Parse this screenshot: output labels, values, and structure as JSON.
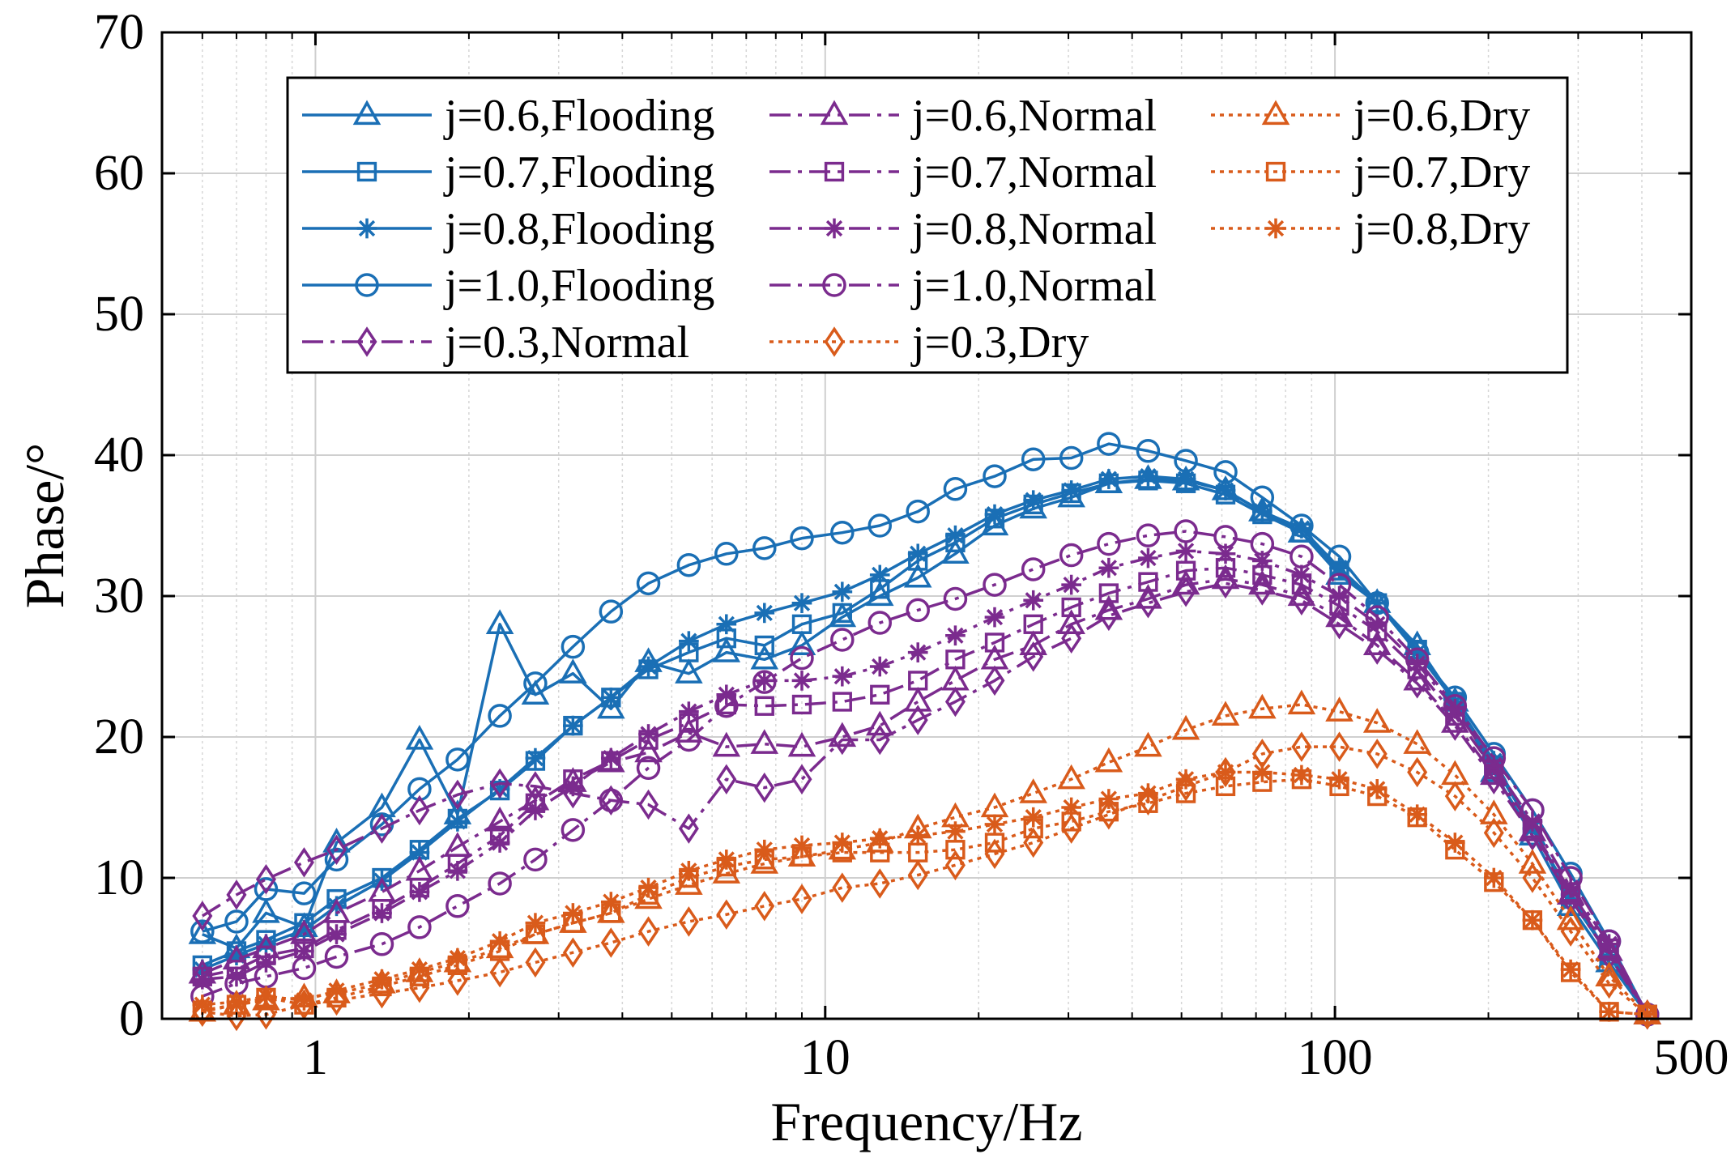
{
  "chart_data": {
    "type": "line",
    "xscale": "log",
    "xlim": [
      0.5,
      500
    ],
    "ylim": [
      0,
      70
    ],
    "grid": true,
    "minor_grid": true,
    "legend_position": "top",
    "xlabel": "Frequency/Hz",
    "ylabel": "Phase/°",
    "x_ticks": [
      1,
      10,
      100,
      500
    ],
    "x_tick_labels": [
      "1",
      "10",
      "100",
      "500"
    ],
    "y_ticks": [
      0,
      10,
      20,
      30,
      40,
      50,
      60,
      70
    ],
    "y_tick_labels": [
      "0",
      "10",
      "20",
      "30",
      "40",
      "50",
      "60",
      "70"
    ],
    "x": [
      0.6,
      0.7,
      0.8,
      0.95,
      1.1,
      1.35,
      1.6,
      1.9,
      2.3,
      2.7,
      3.2,
      3.8,
      4.5,
      5.4,
      6.4,
      7.6,
      9.0,
      10.8,
      12.8,
      15.2,
      18.0,
      21.5,
      25.6,
      30.4,
      36.0,
      43.0,
      51.0,
      61.0,
      72.0,
      86.0,
      102.0,
      121.0,
      145.0,
      172.0,
      205.0,
      244.0,
      290.0,
      345.0,
      410.0
    ],
    "series": [
      {
        "name": "j=0.6,Flooding",
        "color": "#1a6fb5",
        "dash": "solid",
        "marker": "triangle",
        "values": [
          6.0,
          5.0,
          7.5,
          6.5,
          12.5,
          15.0,
          19.8,
          14.5,
          28.0,
          23.0,
          24.5,
          22.0,
          25.3,
          24.5,
          26.0,
          25.5,
          26.5,
          28.5,
          30.0,
          31.3,
          33.0,
          35.0,
          36.2,
          37.0,
          38.0,
          38.3,
          38.2,
          37.5,
          36.0,
          34.5,
          31.5,
          29.5,
          26.5,
          22.5,
          17.5,
          13.0,
          8.0,
          4.0,
          0.3
        ]
      },
      {
        "name": "j=0.7,Flooding",
        "color": "#1a6fb5",
        "dash": "solid",
        "marker": "square",
        "values": [
          3.8,
          4.8,
          5.6,
          6.8,
          8.5,
          10.0,
          12.0,
          14.2,
          16.2,
          18.3,
          20.8,
          22.8,
          24.8,
          26.0,
          27.0,
          26.5,
          28.0,
          28.8,
          30.5,
          32.5,
          33.8,
          35.5,
          36.5,
          37.3,
          38.0,
          38.2,
          38.0,
          37.2,
          35.8,
          34.5,
          31.8,
          29.5,
          26.2,
          22.5,
          18.0,
          13.5,
          8.5,
          4.5,
          0.3
        ]
      },
      {
        "name": "j=0.8,Flooding",
        "color": "#1a6fb5",
        "dash": "solid",
        "marker": "star",
        "values": [
          3.5,
          4.5,
          5.3,
          6.3,
          8.0,
          9.8,
          11.8,
          14.0,
          16.3,
          18.5,
          20.8,
          22.8,
          25.0,
          26.8,
          28.0,
          28.8,
          29.5,
          30.3,
          31.5,
          33.0,
          34.3,
          35.8,
          36.8,
          37.5,
          38.3,
          38.5,
          38.3,
          37.5,
          36.0,
          34.8,
          32.0,
          29.5,
          26.0,
          22.5,
          18.3,
          13.5,
          8.8,
          4.5,
          0.3
        ]
      },
      {
        "name": "j=1.0,Flooding",
        "color": "#1a6fb5",
        "dash": "solid",
        "marker": "circle",
        "values": [
          6.2,
          6.9,
          9.2,
          8.9,
          11.3,
          13.8,
          16.3,
          18.4,
          21.5,
          23.8,
          26.4,
          28.9,
          30.9,
          32.2,
          33.0,
          33.4,
          34.1,
          34.5,
          35.0,
          36.0,
          37.6,
          38.5,
          39.7,
          39.8,
          40.8,
          40.3,
          39.6,
          38.8,
          37.0,
          35.0,
          32.8,
          29.5,
          26.0,
          22.8,
          18.8,
          14.8,
          10.3,
          5.5,
          0.3
        ]
      },
      {
        "name": "j=0.3,Normal",
        "color": "#7b2b8e",
        "dash": "dashdot",
        "marker": "diamond",
        "values": [
          7.3,
          8.8,
          9.9,
          11.1,
          12.0,
          13.5,
          14.8,
          15.9,
          16.7,
          16.5,
          16.0,
          15.5,
          15.2,
          13.5,
          17.0,
          16.4,
          17.0,
          19.8,
          19.8,
          21.2,
          22.5,
          24.0,
          25.7,
          27.0,
          28.6,
          29.5,
          30.3,
          30.9,
          30.4,
          29.7,
          28.0,
          26.2,
          23.8,
          20.8,
          17.0,
          13.0,
          8.5,
          4.5,
          0.3
        ]
      },
      {
        "name": "j=0.6,Normal",
        "color": "#7b2b8e",
        "dash": "dashdot",
        "marker": "triangle",
        "values": [
          3.2,
          4.2,
          5.0,
          6.0,
          7.5,
          9.0,
          10.5,
          12.2,
          14.0,
          15.5,
          16.8,
          18.2,
          18.9,
          20.3,
          19.3,
          19.5,
          19.3,
          20.0,
          20.8,
          22.5,
          24.0,
          25.5,
          26.5,
          28.0,
          29.0,
          29.8,
          30.8,
          31.2,
          30.8,
          30.0,
          28.5,
          26.5,
          24.0,
          21.0,
          17.3,
          13.3,
          8.8,
          4.8,
          0.3
        ]
      },
      {
        "name": "j=0.7,Normal",
        "color": "#7b2b8e",
        "dash": "dashdot",
        "marker": "square",
        "values": [
          3.0,
          3.5,
          4.5,
          5.0,
          6.3,
          7.8,
          9.3,
          11.0,
          13.0,
          15.3,
          17.0,
          18.3,
          19.8,
          21.0,
          22.3,
          22.2,
          22.3,
          22.5,
          23.0,
          24.0,
          25.5,
          26.7,
          28.0,
          29.2,
          30.2,
          31.0,
          31.8,
          32.0,
          31.5,
          30.8,
          29.3,
          27.5,
          24.8,
          21.5,
          17.7,
          13.5,
          9.0,
          5.0,
          0.3
        ]
      },
      {
        "name": "j=0.8,Normal",
        "color": "#7b2b8e",
        "dash": "dashdot",
        "marker": "star",
        "values": [
          2.8,
          3.0,
          4.0,
          4.8,
          6.0,
          7.5,
          9.0,
          10.5,
          12.5,
          14.8,
          16.5,
          18.5,
          20.2,
          21.8,
          23.0,
          24.0,
          24.0,
          24.3,
          25.0,
          26.0,
          27.2,
          28.5,
          29.7,
          30.8,
          32.0,
          32.7,
          33.2,
          33.0,
          32.5,
          31.5,
          30.0,
          28.0,
          25.2,
          22.0,
          18.0,
          14.0,
          9.3,
          5.3,
          0.3
        ]
      },
      {
        "name": "j=1.0,Normal",
        "color": "#7b2b8e",
        "dash": "dashdot",
        "marker": "circle",
        "values": [
          1.6,
          2.5,
          3.0,
          3.6,
          4.4,
          5.3,
          6.5,
          8.0,
          9.6,
          11.3,
          13.4,
          15.5,
          17.8,
          19.8,
          22.2,
          23.9,
          25.6,
          26.9,
          28.1,
          29.0,
          29.8,
          30.8,
          31.9,
          32.9,
          33.7,
          34.3,
          34.6,
          34.2,
          33.7,
          32.8,
          30.8,
          28.5,
          25.5,
          22.2,
          18.5,
          14.8,
          10.0,
          5.5,
          0.3
        ]
      },
      {
        "name": "j=0.3,Dry",
        "color": "#d95b1b",
        "dash": "dot",
        "marker": "diamond",
        "values": [
          0.5,
          0.2,
          0.3,
          1.0,
          1.3,
          1.8,
          2.2,
          2.7,
          3.3,
          4.0,
          4.7,
          5.4,
          6.2,
          6.9,
          7.4,
          8.0,
          8.5,
          9.3,
          9.6,
          10.2,
          10.9,
          11.7,
          12.5,
          13.5,
          14.5,
          15.5,
          16.5,
          17.5,
          18.8,
          19.3,
          19.3,
          18.8,
          17.5,
          15.8,
          13.2,
          10.0,
          6.2,
          2.5,
          0.3
        ]
      },
      {
        "name": "j=0.6,Dry",
        "color": "#d95b1b",
        "dash": "dot",
        "marker": "triangle",
        "values": [
          0.5,
          1.0,
          1.3,
          1.5,
          1.8,
          2.5,
          3.3,
          4.0,
          5.0,
          6.0,
          6.8,
          7.5,
          8.5,
          9.5,
          10.3,
          11.0,
          11.5,
          12.0,
          12.5,
          13.5,
          14.3,
          15.0,
          16.0,
          17.0,
          18.2,
          19.3,
          20.5,
          21.5,
          22.0,
          22.3,
          21.8,
          21.0,
          19.5,
          17.3,
          14.5,
          11.0,
          7.0,
          3.0,
          0.3
        ]
      },
      {
        "name": "j=0.7,Dry",
        "color": "#d95b1b",
        "dash": "dot",
        "marker": "square",
        "values": [
          0.6,
          1.0,
          1.5,
          1.0,
          1.5,
          2.3,
          3.0,
          3.8,
          4.8,
          6.0,
          6.8,
          7.5,
          8.8,
          10.0,
          10.8,
          11.3,
          11.5,
          11.8,
          11.8,
          11.8,
          12.0,
          12.5,
          13.5,
          14.0,
          14.7,
          15.3,
          16.0,
          16.5,
          16.8,
          17.0,
          16.5,
          15.8,
          14.3,
          12.0,
          9.7,
          7.0,
          3.3,
          0.5,
          0.3
        ]
      },
      {
        "name": "j=0.8,Dry",
        "color": "#d95b1b",
        "dash": "dot",
        "marker": "star",
        "values": [
          1.0,
          1.2,
          1.6,
          1.3,
          2.0,
          2.8,
          3.5,
          4.3,
          5.5,
          6.8,
          7.5,
          8.3,
          9.3,
          10.5,
          11.3,
          12.0,
          12.3,
          12.5,
          12.8,
          13.0,
          13.3,
          13.8,
          14.3,
          15.0,
          15.6,
          16.0,
          17.0,
          17.5,
          17.5,
          17.3,
          17.0,
          16.3,
          14.5,
          12.5,
          10.0,
          7.0,
          3.5,
          0.5,
          0.3
        ]
      }
    ],
    "legend": {
      "columns": [
        [
          "j=0.6,Flooding",
          "j=0.7,Flooding",
          "j=0.8,Flooding",
          "j=1.0,Flooding",
          "j=0.3,Normal"
        ],
        [
          "j=0.6,Normal",
          "j=0.7,Normal",
          "j=0.8,Normal",
          "j=1.0,Normal",
          "j=0.3,Dry"
        ],
        [
          "j=0.6,Dry",
          "j=0.7,Dry",
          "j=0.8,Dry"
        ]
      ]
    }
  }
}
